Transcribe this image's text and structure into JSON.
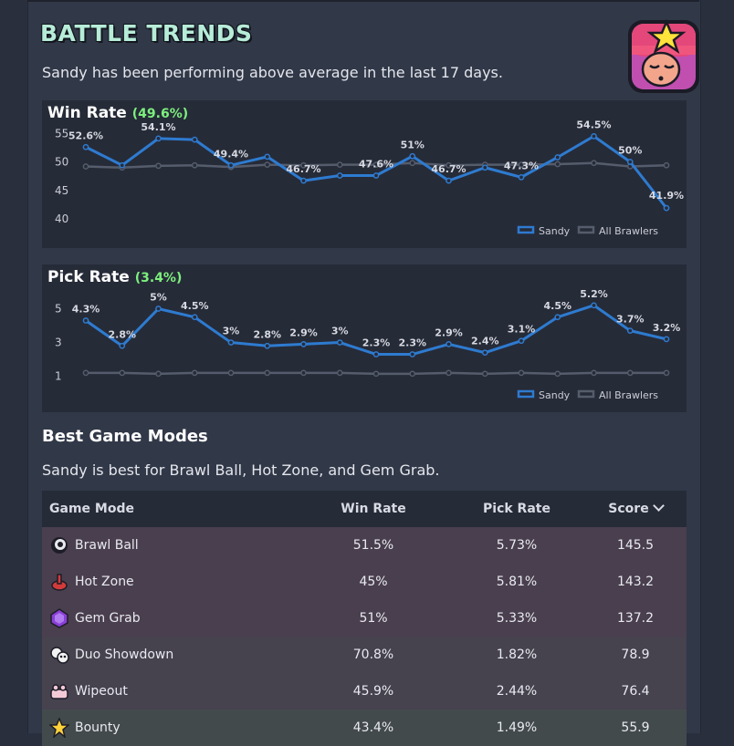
{
  "header": {
    "title": "BATTLE TRENDS",
    "summary": "Sandy has been performing above average in the last 17 days."
  },
  "avatar": {
    "icon": "sandy-avatar-icon"
  },
  "colors": {
    "sandy": "#2e7bd0",
    "all": "#555c6b",
    "accent_green": "#7df07d",
    "title_teal": "#b6ecd8"
  },
  "win_rate": {
    "label": "Win Rate",
    "value": "(49.6%)",
    "chart_data": {
      "type": "line",
      "ylim": [
        40,
        56
      ],
      "yticks": [
        40,
        45,
        50,
        55
      ],
      "series": [
        {
          "name": "Sandy",
          "values": [
            52.6,
            49.4,
            54.1,
            53.9,
            49.4,
            50.9,
            46.7,
            47.6,
            47.6,
            51.0,
            46.7,
            49.0,
            47.3,
            50.8,
            54.5,
            50.0,
            41.9
          ],
          "labels": [
            "52.6%",
            "",
            "54.1%",
            "",
            "49.4%",
            "",
            "46.7%",
            "",
            "47.6%",
            "51%",
            "46.7%",
            "",
            "47.3%",
            "",
            "54.5%",
            "50%",
            "41.9%"
          ]
        },
        {
          "name": "All Brawlers",
          "values": [
            49.2,
            49.0,
            49.3,
            49.4,
            49.1,
            49.5,
            49.4,
            49.5,
            49.5,
            49.8,
            49.4,
            49.5,
            49.5,
            49.6,
            49.8,
            49.2,
            49.4
          ]
        }
      ]
    }
  },
  "pick_rate": {
    "label": "Pick Rate",
    "value": "(3.4%)",
    "chart_data": {
      "type": "line",
      "ylim": [
        0.6,
        6.0
      ],
      "yticks": [
        1,
        3,
        5
      ],
      "series": [
        {
          "name": "Sandy",
          "values": [
            4.3,
            2.8,
            5.0,
            4.5,
            3.0,
            2.8,
            2.9,
            3.0,
            2.3,
            2.3,
            2.9,
            2.4,
            3.1,
            4.5,
            5.2,
            3.7,
            3.2
          ],
          "labels": [
            "4.3%",
            "2.8%",
            "5%",
            "4.5%",
            "3%",
            "2.8%",
            "2.9%",
            "3%",
            "2.3%",
            "2.3%",
            "2.9%",
            "2.4%",
            "3.1%",
            "4.5%",
            "5.2%",
            "3.7%",
            "3.2%"
          ]
        },
        {
          "name": "All Brawlers",
          "values": [
            1.2,
            1.2,
            1.15,
            1.2,
            1.2,
            1.2,
            1.2,
            1.2,
            1.15,
            1.15,
            1.2,
            1.15,
            1.2,
            1.15,
            1.2,
            1.2,
            1.2
          ]
        }
      ]
    }
  },
  "legend": {
    "sandy": "Sandy",
    "all": "All Brawlers"
  },
  "modes": {
    "title": "Best Game Modes",
    "summary": "Sandy is best for Brawl Ball, Hot Zone, and Gem Grab.",
    "headers": {
      "mode": "Game Mode",
      "win": "Win Rate",
      "pick": "Pick Rate",
      "score": "Score"
    },
    "rows": [
      {
        "mode": "Brawl Ball",
        "win": "51.5%",
        "pick": "5.73%",
        "score": "145.5",
        "icon": "brawl-ball-icon",
        "bg": "#4a3f4e"
      },
      {
        "mode": "Hot Zone",
        "win": "45%",
        "pick": "5.81%",
        "score": "143.2",
        "icon": "hot-zone-icon",
        "bg": "#4a3f4e"
      },
      {
        "mode": "Gem Grab",
        "win": "51%",
        "pick": "5.33%",
        "score": "137.2",
        "icon": "gem-grab-icon",
        "bg": "#4a3f4e"
      },
      {
        "mode": "Duo Showdown",
        "win": "70.8%",
        "pick": "1.82%",
        "score": "78.9",
        "icon": "duo-showdown-icon",
        "bg": "#46424e"
      },
      {
        "mode": "Wipeout",
        "win": "45.9%",
        "pick": "2.44%",
        "score": "76.4",
        "icon": "wipeout-icon",
        "bg": "#46424e"
      },
      {
        "mode": "Bounty",
        "win": "43.4%",
        "pick": "1.49%",
        "score": "55.9",
        "icon": "bounty-icon",
        "bg": "#434a4c"
      }
    ]
  }
}
